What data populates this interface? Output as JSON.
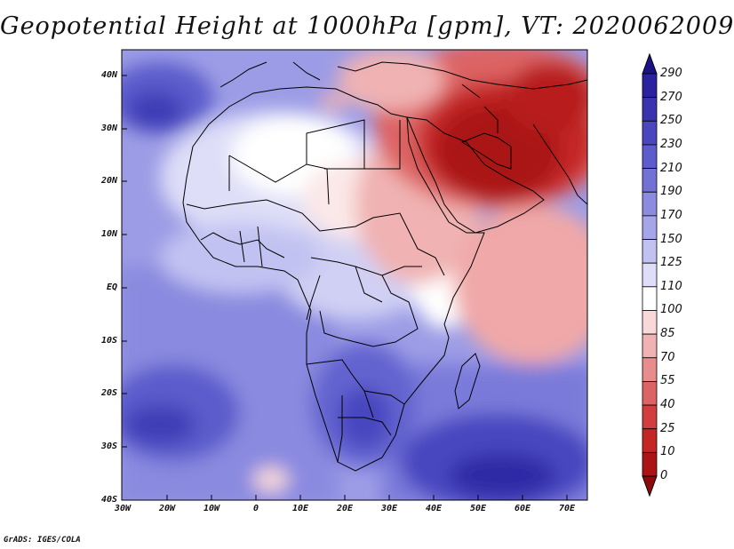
{
  "title": "Geopotential Height at 1000hPa [gpm], VT: 2020062009",
  "credit": "GrADS: IGES/COLA",
  "map": {
    "variable": "Geopotential Height",
    "level": "1000hPa",
    "units": "gpm",
    "valid_time": "2020062009",
    "lat_ticks": [
      "40N",
      "30N",
      "20N",
      "10N",
      "EQ",
      "10S",
      "20S",
      "30S",
      "40S"
    ],
    "lon_ticks": [
      "30W",
      "20W",
      "10W",
      "0",
      "10E",
      "20E",
      "30E",
      "40E",
      "50E",
      "60E",
      "70E"
    ]
  },
  "colorbar": {
    "labels": [
      "290",
      "270",
      "250",
      "230",
      "210",
      "190",
      "170",
      "150",
      "125",
      "110",
      "100",
      "85",
      "70",
      "55",
      "40",
      "25",
      "10",
      "0"
    ],
    "colors": [
      "#1c1288",
      "#2a229e",
      "#3a33b0",
      "#4a46c0",
      "#5c5ccc",
      "#7272d6",
      "#8b8be0",
      "#a5a5ea",
      "#c2c2f2",
      "#dedef8",
      "#ffffff",
      "#f8d8d8",
      "#f0b2b2",
      "#e88c8c",
      "#dd6464",
      "#d23e3e",
      "#c42525",
      "#aa1414",
      "#8c0a0a"
    ]
  }
}
